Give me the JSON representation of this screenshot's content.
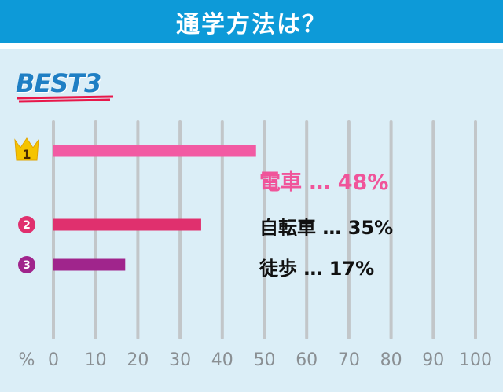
{
  "header": {
    "title": "通学方法は？"
  },
  "badge": {
    "text": "BEST3"
  },
  "chart_data": {
    "type": "bar",
    "orientation": "horizontal",
    "categories": [
      "電車",
      "自転車",
      "徒歩"
    ],
    "values": [
      48,
      35,
      17
    ],
    "rank_markers": [
      "1",
      "2",
      "3"
    ],
    "value_labels": [
      "48%",
      "35%",
      "17%"
    ],
    "separator": "…",
    "xunit": "%",
    "xlim": [
      0,
      100
    ],
    "xticks": [
      0,
      10,
      20,
      30,
      40,
      50,
      60,
      70,
      80,
      90,
      100
    ],
    "grid": true,
    "bar_colors": [
      "#f25aa3",
      "#e0306e",
      "#a0258c"
    ]
  },
  "colors": {
    "header_bg": "#0d9ad8",
    "panel_bg": "#dbeef7",
    "grid": "#c2c6c9",
    "crown": "#f5c400",
    "badge_text": "#1f7fc4",
    "badge_underline": "#e8174a"
  },
  "icons": {
    "first_rank": "crown-icon",
    "other_rank": "number-circle-icon"
  }
}
